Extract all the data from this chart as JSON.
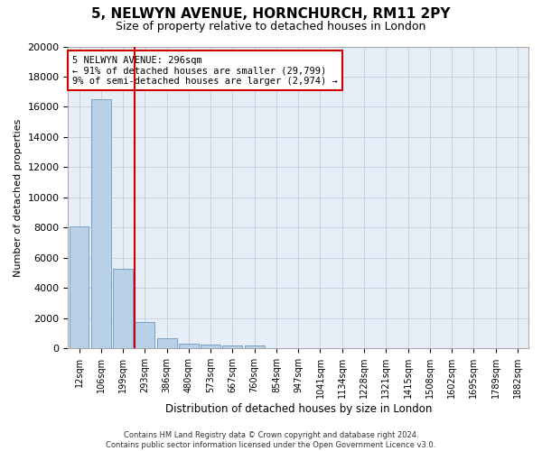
{
  "title": "5, NELWYN AVENUE, HORNCHURCH, RM11 2PY",
  "subtitle": "Size of property relative to detached houses in London",
  "xlabel": "Distribution of detached houses by size in London",
  "ylabel": "Number of detached properties",
  "categories": [
    "12sqm",
    "106sqm",
    "199sqm",
    "293sqm",
    "386sqm",
    "480sqm",
    "573sqm",
    "667sqm",
    "760sqm",
    "854sqm",
    "947sqm",
    "1041sqm",
    "1134sqm",
    "1228sqm",
    "1321sqm",
    "1415sqm",
    "1508sqm",
    "1602sqm",
    "1695sqm",
    "1789sqm",
    "1882sqm"
  ],
  "bar_heights": [
    8100,
    16500,
    5300,
    1750,
    650,
    340,
    270,
    200,
    180,
    0,
    0,
    0,
    0,
    0,
    0,
    0,
    0,
    0,
    0,
    0,
    0
  ],
  "bar_color": "#b8d0e8",
  "bar_edge_color": "#6699bb",
  "vline_color": "#cc0000",
  "annotation_text": "5 NELWYN AVENUE: 296sqm\n← 91% of detached houses are smaller (29,799)\n9% of semi-detached houses are larger (2,974) →",
  "annotation_box_color": "#cc0000",
  "ylim": [
    0,
    20000
  ],
  "yticks": [
    0,
    2000,
    4000,
    6000,
    8000,
    10000,
    12000,
    14000,
    16000,
    18000,
    20000
  ],
  "footnote": "Contains HM Land Registry data © Crown copyright and database right 2024.\nContains public sector information licensed under the Open Government Licence v3.0.",
  "bg_color": "#e8eef8",
  "title_fontsize": 11,
  "subtitle_fontsize": 9,
  "grid_color": "#c8d0e0"
}
